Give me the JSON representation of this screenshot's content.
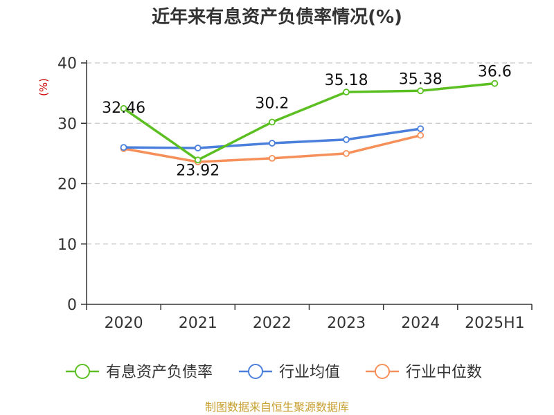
{
  "title": "近年来有息资产负债率情况(%)",
  "source": "制图数据来自恒生聚源数据库",
  "chart_data": {
    "type": "line",
    "title": "近年来有息资产负债率情况(%)",
    "ylabel": "(%)",
    "xlabel": "",
    "categories": [
      "2020",
      "2021",
      "2022",
      "2023",
      "2024",
      "2025H1"
    ],
    "ylim": [
      0,
      40
    ],
    "yticks": [
      0,
      10,
      20,
      30,
      40
    ],
    "grid": true,
    "legend_position": "bottom",
    "series": [
      {
        "name": "有息资产负债率",
        "color": "#5bbf21",
        "values": [
          32.46,
          23.92,
          30.2,
          35.18,
          35.38,
          36.6
        ],
        "value_labels": [
          "32.46",
          "23.92",
          "30.2",
          "35.18",
          "35.38",
          "36.6"
        ]
      },
      {
        "name": "行业均值",
        "color": "#4a7fdc",
        "values": [
          26.0,
          25.9,
          26.7,
          27.3,
          29.1,
          null
        ]
      },
      {
        "name": "行业中位数",
        "color": "#f5905a",
        "values": [
          25.8,
          23.6,
          24.2,
          25.0,
          28.0,
          null
        ]
      }
    ]
  }
}
